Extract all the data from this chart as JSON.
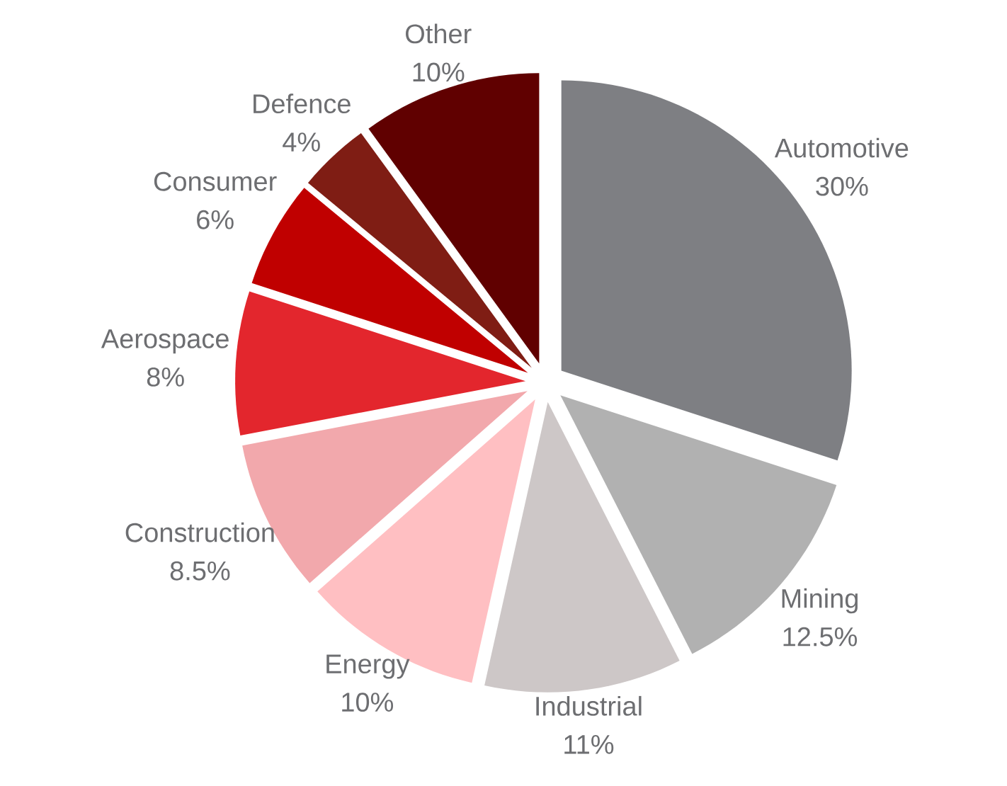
{
  "chart_data": {
    "type": "pie",
    "categories": [
      "Automotive",
      "Mining",
      "Industrial",
      "Energy",
      "Construction",
      "Aerospace",
      "Consumer",
      "Defence",
      "Other"
    ],
    "values": [
      30,
      12.5,
      11,
      10,
      8.5,
      8,
      6,
      4,
      10
    ],
    "value_labels": [
      "30%",
      "12.5%",
      "11%",
      "10%",
      "8.5%",
      "8%",
      "6%",
      "4%",
      "10%"
    ],
    "colors": [
      "#7e7f83",
      "#b1b1b1",
      "#cdc7c7",
      "#ffbfc2",
      "#f2a8ac",
      "#e3262d",
      "#c00000",
      "#7f1d14",
      "#600000"
    ]
  }
}
